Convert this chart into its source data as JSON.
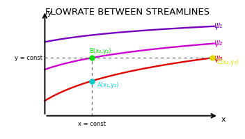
{
  "title": "FLOWRATE BETWEEN STREAMLINES",
  "title_fontsize": 9.5,
  "bg_color": "#ffffff",
  "streamline1_color": "#7700bb",
  "streamline2_color": "#cc00cc",
  "streamline3_color": "#dd0000",
  "psi_labels": [
    {
      "text": "ψ₁",
      "color": "#7700bb"
    },
    {
      "text": "ψ₂",
      "color": "#cc00cc"
    },
    {
      "text": "ψ₃",
      "color": "#dd0000"
    }
  ],
  "dashed_color": "#777777",
  "point_A": {
    "color": "#00cccc",
    "label": "A(x₁,y₁)"
  },
  "point_B": {
    "color": "#00dd00",
    "label": "B(x₂,y₂)"
  },
  "point_C": {
    "color": "#dddd00",
    "label": "C(x₃,y₃)"
  },
  "x_const_label": "x = const",
  "y_const_label": "y = const",
  "xlabel": "x",
  "ylabel": "y"
}
